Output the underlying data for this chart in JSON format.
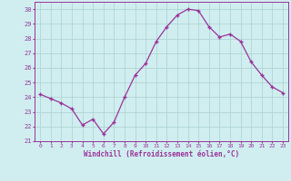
{
  "x": [
    0,
    1,
    2,
    3,
    4,
    5,
    6,
    7,
    8,
    9,
    10,
    11,
    12,
    13,
    14,
    15,
    16,
    17,
    18,
    19,
    20,
    21,
    22,
    23
  ],
  "y": [
    24.2,
    23.9,
    23.6,
    23.2,
    22.1,
    22.5,
    21.5,
    22.3,
    24.0,
    25.5,
    26.3,
    27.8,
    28.8,
    29.6,
    30.0,
    29.9,
    28.8,
    28.1,
    28.3,
    27.8,
    26.4,
    25.5,
    24.7,
    24.3
  ],
  "line_color": "#993399",
  "marker": "+",
  "bg_color": "#d0eef0",
  "grid_color": "#b0d4d4",
  "xlabel": "Windchill (Refroidissement éolien,°C)",
  "xlabel_color": "#993399",
  "tick_color": "#993399",
  "ylim": [
    21,
    30.5
  ],
  "xlim": [
    -0.5,
    23.5
  ],
  "yticks": [
    21,
    22,
    23,
    24,
    25,
    26,
    27,
    28,
    29,
    30
  ],
  "xticks": [
    0,
    1,
    2,
    3,
    4,
    5,
    6,
    7,
    8,
    9,
    10,
    11,
    12,
    13,
    14,
    15,
    16,
    17,
    18,
    19,
    20,
    21,
    22,
    23
  ]
}
